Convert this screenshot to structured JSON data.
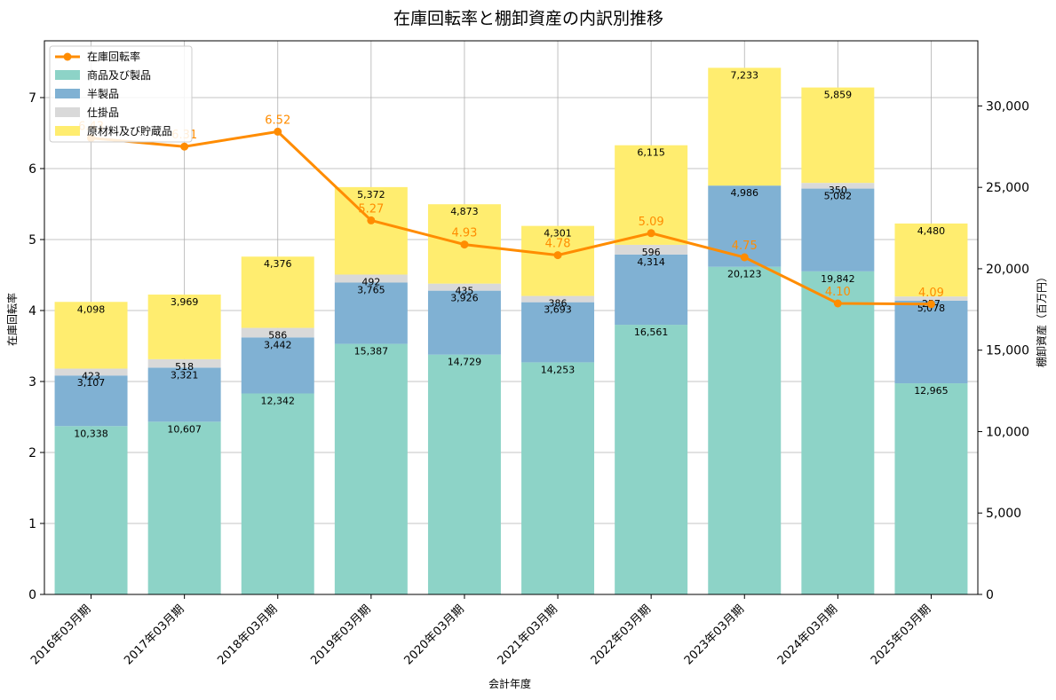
{
  "chart_data": {
    "type": "bar",
    "title": "在庫回転率と棚卸資産の内訳別推移",
    "xlabel": "会計年度",
    "ylabel_left": "在庫回転率",
    "ylabel_right": "棚卸資産（百万円）",
    "categories": [
      "2016年03月期",
      "2017年03月期",
      "2018年03月期",
      "2019年03月期",
      "2020年03月期",
      "2021年03月期",
      "2022年03月期",
      "2023年03月期",
      "2024年03月期",
      "2025年03月期"
    ],
    "stacked": true,
    "series": [
      {
        "name": "商品及び製品",
        "color": "#8dd3c7",
        "values": [
          10338,
          10607,
          12342,
          15387,
          14729,
          14253,
          16561,
          20123,
          19842,
          12965
        ]
      },
      {
        "name": "半製品",
        "color": "#80b1d3",
        "values": [
          3107,
          3321,
          3442,
          3765,
          3926,
          3693,
          4314,
          4986,
          5082,
          5078
        ]
      },
      {
        "name": "仕掛品",
        "color": "#d9d9d9",
        "values": [
          423,
          518,
          586,
          492,
          435,
          386,
          596,
          0,
          350,
          257
        ]
      },
      {
        "name": "原材料及び貯蔵品",
        "color": "#ffed6f",
        "values": [
          4098,
          3969,
          4376,
          5372,
          4873,
          4301,
          6115,
          7233,
          5859,
          4480
        ]
      }
    ],
    "line_series": {
      "name": "在庫回転率",
      "color": "#ff8c00",
      "values": [
        6.43,
        6.31,
        6.52,
        5.27,
        4.93,
        4.78,
        5.09,
        4.75,
        4.1,
        4.09
      ]
    },
    "y_left": {
      "min": 0,
      "max": 7.8,
      "ticks": [
        "0",
        "1",
        "2",
        "3",
        "4",
        "5",
        "6",
        "7"
      ],
      "tick_values": [
        0,
        1,
        2,
        3,
        4,
        5,
        6,
        7
      ]
    },
    "y_right": {
      "min": 0,
      "max": 34000,
      "ticks": [
        "0",
        "5,000",
        "10,000",
        "15,000",
        "20,000",
        "25,000",
        "30,000"
      ],
      "tick_values": [
        0,
        5000,
        10000,
        15000,
        20000,
        25000,
        30000
      ]
    },
    "grid": true,
    "legend_position": "top-left"
  }
}
